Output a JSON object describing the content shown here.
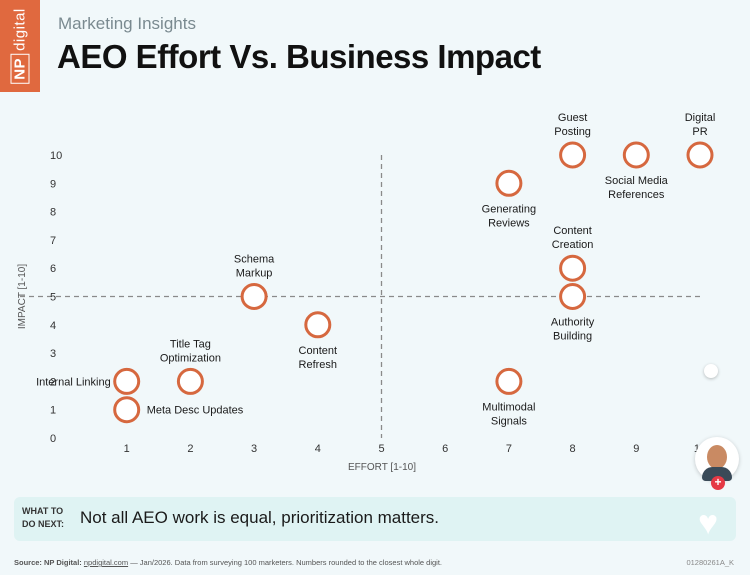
{
  "brand": {
    "np": "NP",
    "digital": "digital"
  },
  "header": {
    "subtitle": "Marketing Insights",
    "title": "AEO Effort Vs. Business Impact"
  },
  "callout": {
    "tag_line1": "WHAT TO",
    "tag_line2": "DO NEXT:",
    "message": "Not all AEO work is equal, prioritization matters."
  },
  "footer": {
    "source_label": "Source: NP Digital:",
    "source_link": "npdigital.com",
    "source_rest": "— Jan/2026. Data from surveying 100 marketers. Numbers rounded to the closest whole digit.",
    "code": "01280261A_K"
  },
  "icons": {
    "avatar": "avatar-icon",
    "plus": "plus-icon",
    "heart": "heart-icon",
    "dot": "dot-icon"
  },
  "colors": {
    "accent": "#e0693f",
    "marker": "#d6683f",
    "callout_bg": "#dff3f3",
    "background": "#f1f8fa"
  },
  "chart_data": {
    "type": "scatter",
    "xlabel": "EFFORT [1-10]",
    "ylabel": "IMPACT [1-10]",
    "xlim": [
      0,
      10
    ],
    "ylim": [
      0,
      10
    ],
    "xticks": [
      "1",
      "2",
      "3",
      "4",
      "5",
      "6",
      "7",
      "8",
      "9",
      "10"
    ],
    "yticks": [
      "0",
      "1",
      "2",
      "3",
      "4",
      "5",
      "6",
      "7",
      "8",
      "9",
      "10"
    ],
    "reference_lines": {
      "x": 5,
      "y": 5
    },
    "points": [
      {
        "label": "Internal Linking",
        "x": 1,
        "y": 2,
        "label_pos": "left"
      },
      {
        "label": "Meta Desc Updates",
        "x": 1,
        "y": 1,
        "label_pos": "right"
      },
      {
        "label": "Title Tag Optimization",
        "x": 2,
        "y": 2,
        "label_pos": "above"
      },
      {
        "label": "Schema Markup",
        "x": 3,
        "y": 5,
        "label_pos": "above"
      },
      {
        "label": "Content Refresh",
        "x": 4,
        "y": 4,
        "label_pos": "below"
      },
      {
        "label": "Multimodal Signals",
        "x": 7,
        "y": 2,
        "label_pos": "below"
      },
      {
        "label": "Generating Reviews",
        "x": 7,
        "y": 9,
        "label_pos": "below"
      },
      {
        "label": "Authority Building",
        "x": 8,
        "y": 5,
        "label_pos": "below"
      },
      {
        "label": "Content Creation",
        "x": 8,
        "y": 6,
        "label_pos": "above"
      },
      {
        "label": "Guest Posting",
        "x": 8,
        "y": 10,
        "label_pos": "above"
      },
      {
        "label": "Social Media References",
        "x": 9,
        "y": 10,
        "label_pos": "below"
      },
      {
        "label": "Digital PR",
        "x": 10,
        "y": 10,
        "label_pos": "above"
      }
    ]
  }
}
